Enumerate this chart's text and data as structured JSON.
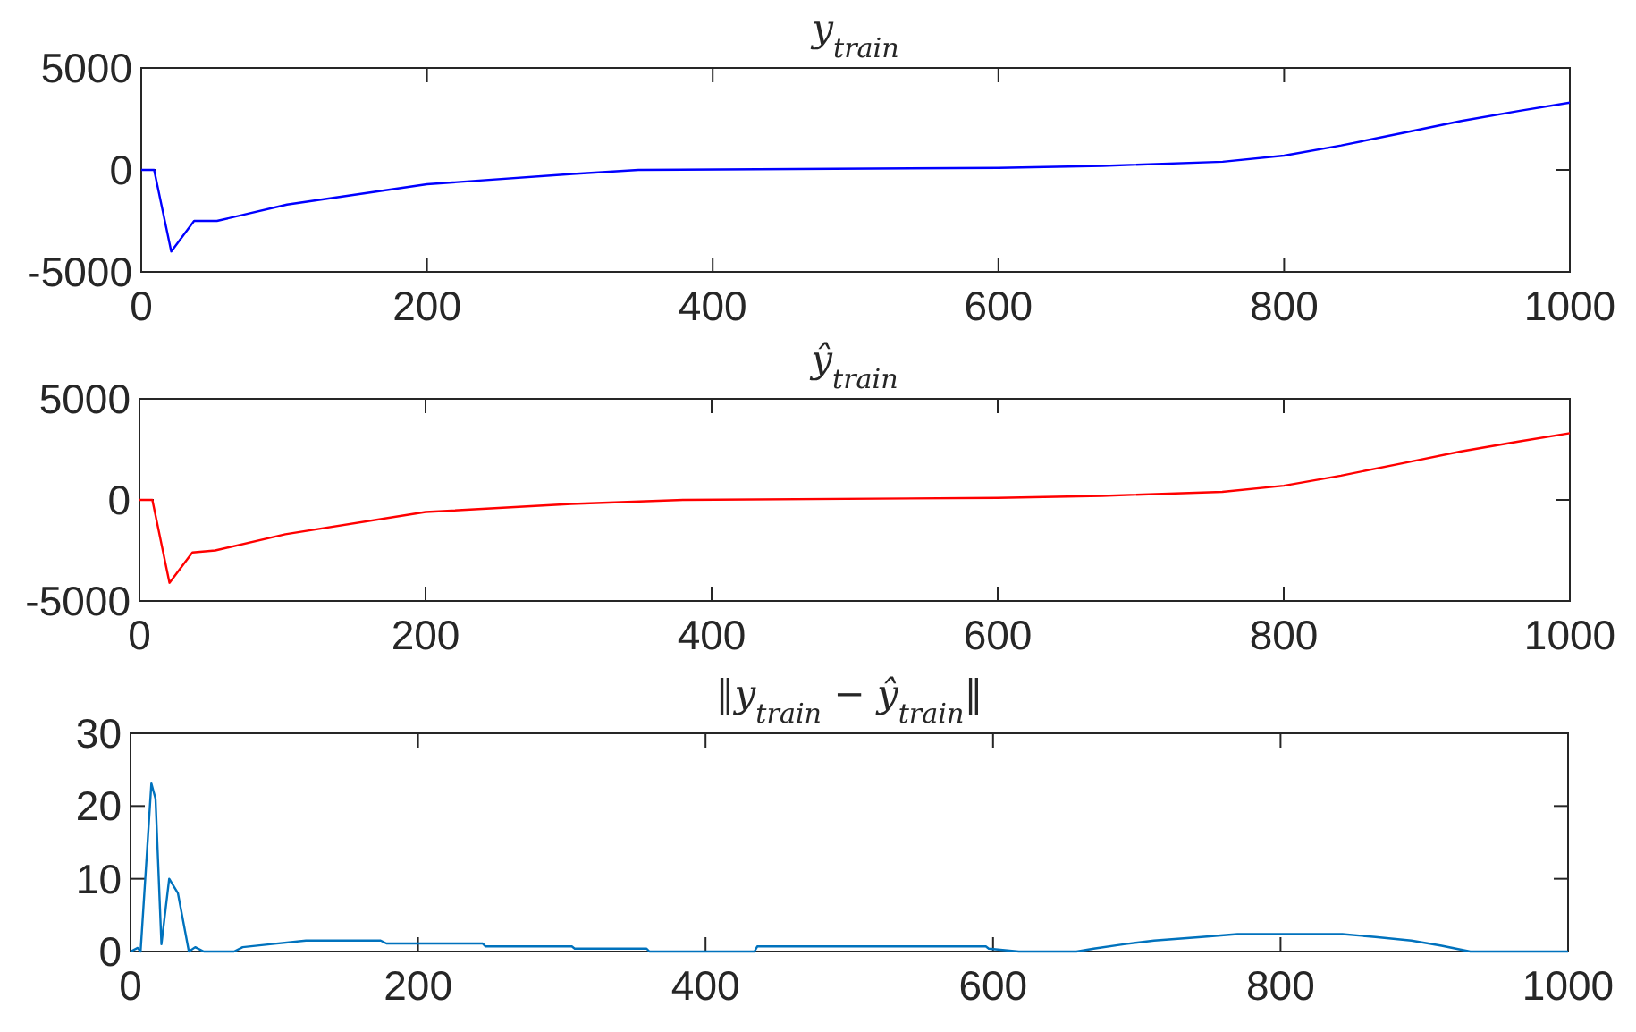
{
  "chart_data": [
    {
      "type": "line",
      "title": "y$_{train}$",
      "x": [
        0,
        9,
        21,
        37,
        53,
        102,
        200,
        302,
        348,
        600,
        673,
        757,
        800,
        840,
        882,
        924,
        965,
        1000
      ],
      "series": [
        {
          "color": "#0000ff",
          "values": [
            0,
            0,
            -4000,
            -2500,
            -2500,
            -1700,
            -700,
            -200,
            0,
            100,
            200,
            400,
            700,
            1200,
            1800,
            2400,
            2900,
            3300
          ]
        }
      ],
      "xlim": [
        0,
        1000
      ],
      "xticks": [
        0,
        200,
        400,
        600,
        800,
        1000
      ],
      "ylim": [
        -5000,
        5000
      ],
      "yticks": [
        -5000,
        0,
        5000
      ],
      "marker": "none",
      "line_style": "solid"
    },
    {
      "type": "line",
      "title": "ŷ$_{train}$",
      "x": [
        0,
        9,
        21,
        37,
        53,
        102,
        200,
        302,
        380,
        600,
        673,
        757,
        800,
        840,
        882,
        924,
        965,
        1000
      ],
      "series": [
        {
          "color": "#ff0000",
          "values": [
            0,
            0,
            -4100,
            -2600,
            -2500,
            -1700,
            -600,
            -200,
            0,
            100,
            200,
            400,
            700,
            1200,
            1800,
            2400,
            2900,
            3300
          ]
        }
      ],
      "xlim": [
        0,
        1000
      ],
      "xticks": [
        0,
        200,
        400,
        600,
        800,
        1000
      ],
      "ylim": [
        -5000,
        5000
      ],
      "yticks": [
        -5000,
        0,
        5000
      ],
      "marker": "none",
      "line_style": "solid"
    },
    {
      "type": "line",
      "title": "‖y$_{train}$ − ŷ$_{train}$‖",
      "x": [
        0,
        5,
        7,
        14.5,
        17.4,
        21.5,
        26.9,
        33,
        40.6,
        45,
        51,
        72,
        78,
        97,
        122,
        174,
        178,
        245,
        247,
        307,
        309,
        359,
        361,
        434,
        436,
        595,
        597,
        618,
        658,
        670,
        691,
        712,
        745,
        770,
        795,
        843,
        866,
        891,
        912,
        932,
        1000
      ],
      "series": [
        {
          "color": "#0072bd",
          "values": [
            0,
            0.5,
            0,
            23.1,
            21,
            1,
            10,
            8,
            0,
            0.6,
            0,
            0,
            0.6,
            1,
            1.5,
            1.5,
            1.1,
            1.1,
            0.7,
            0.7,
            0.4,
            0.4,
            0,
            0,
            0.7,
            0.7,
            0.4,
            0,
            0,
            0.4,
            1,
            1.5,
            2,
            2.4,
            2.4,
            2.4,
            2,
            1.5,
            0.8,
            0,
            0
          ]
        }
      ],
      "xlim": [
        0,
        1000
      ],
      "xticks": [
        0,
        200,
        400,
        600,
        800,
        1000
      ],
      "ylim": [
        0,
        30
      ],
      "yticks": [
        0,
        10,
        20,
        30
      ],
      "marker": "none",
      "line_style": "solid"
    }
  ]
}
